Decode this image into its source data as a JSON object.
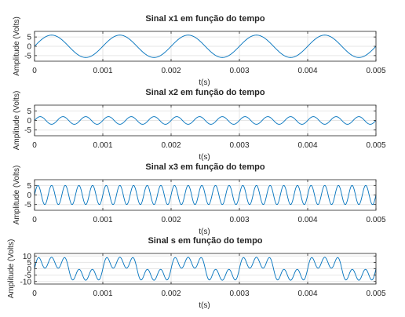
{
  "figure": {
    "background": "#ffffff",
    "line_color": "#0072bd",
    "grid_color": "#e6e6e6"
  },
  "chart_data": [
    {
      "type": "line",
      "title": "Sinal x1 em função do tempo",
      "xlabel": "t(s)",
      "ylabel": "Amplitude (Volts)",
      "xlim": [
        0,
        0.005
      ],
      "ylim": [
        -8,
        8
      ],
      "xticks": [
        0,
        0.001,
        0.002,
        0.003,
        0.004,
        0.005
      ],
      "xtick_labels": [
        "0",
        "0.001",
        "0.002",
        "0.003",
        "0.004",
        "0.005"
      ],
      "yticks": [
        -5,
        0,
        5
      ],
      "ytick_labels": [
        "-5",
        "0",
        "5"
      ],
      "grid": true,
      "series": [
        {
          "signal": {
            "components": [
              {
                "amplitude": 6,
                "frequency_hz": 1000,
                "waveform": "sine"
              }
            ]
          }
        }
      ]
    },
    {
      "type": "line",
      "title": "Sinal x2 em função do tempo",
      "xlabel": "t(s)",
      "ylabel": "Amplitude (Volts)",
      "xlim": [
        0,
        0.005
      ],
      "ylim": [
        -8,
        8
      ],
      "xticks": [
        0,
        0.001,
        0.002,
        0.003,
        0.004,
        0.005
      ],
      "xtick_labels": [
        "0",
        "0.001",
        "0.002",
        "0.003",
        "0.004",
        "0.005"
      ],
      "yticks": [
        -5,
        0,
        5
      ],
      "ytick_labels": [
        "-5",
        "0",
        "5"
      ],
      "grid": true,
      "series": [
        {
          "signal": {
            "components": [
              {
                "amplitude": 2,
                "frequency_hz": 3000,
                "waveform": "sine"
              }
            ]
          }
        }
      ]
    },
    {
      "type": "line",
      "title": "Sinal x3 em função do tempo",
      "xlabel": "t(s)",
      "ylabel": "Amplitude (Volts)",
      "xlim": [
        0,
        0.005
      ],
      "ylim": [
        -8,
        8
      ],
      "xticks": [
        0,
        0.001,
        0.002,
        0.003,
        0.004,
        0.005
      ],
      "xtick_labels": [
        "0",
        "0.001",
        "0.002",
        "0.003",
        "0.004",
        "0.005"
      ],
      "yticks": [
        -5,
        0,
        5
      ],
      "ytick_labels": [
        "-5",
        "0",
        "5"
      ],
      "grid": true,
      "series": [
        {
          "signal": {
            "components": [
              {
                "amplitude": 5,
                "frequency_hz": 5000,
                "waveform": "sine"
              }
            ]
          }
        }
      ]
    },
    {
      "type": "line",
      "title": "Sinal s em função do tempo",
      "xlabel": "t(s)",
      "ylabel": "Amplitude (Volts)",
      "xlim": [
        0,
        0.005
      ],
      "ylim": [
        -12,
        12
      ],
      "xticks": [
        0,
        0.001,
        0.002,
        0.003,
        0.004,
        0.005
      ],
      "xtick_labels": [
        "0",
        "0.001",
        "0.002",
        "0.003",
        "0.004",
        "0.005"
      ],
      "yticks": [
        -10,
        -5,
        0,
        5,
        10
      ],
      "ytick_labels": [
        "-10",
        "-5",
        "0",
        "5",
        "10"
      ],
      "grid": true,
      "series": [
        {
          "signal": {
            "components": [
              {
                "amplitude": 6,
                "frequency_hz": 1000,
                "waveform": "sine"
              },
              {
                "amplitude": 2,
                "frequency_hz": 3000,
                "waveform": "sine"
              },
              {
                "amplitude": 5,
                "frequency_hz": 5000,
                "waveform": "sine"
              }
            ]
          }
        }
      ]
    }
  ]
}
